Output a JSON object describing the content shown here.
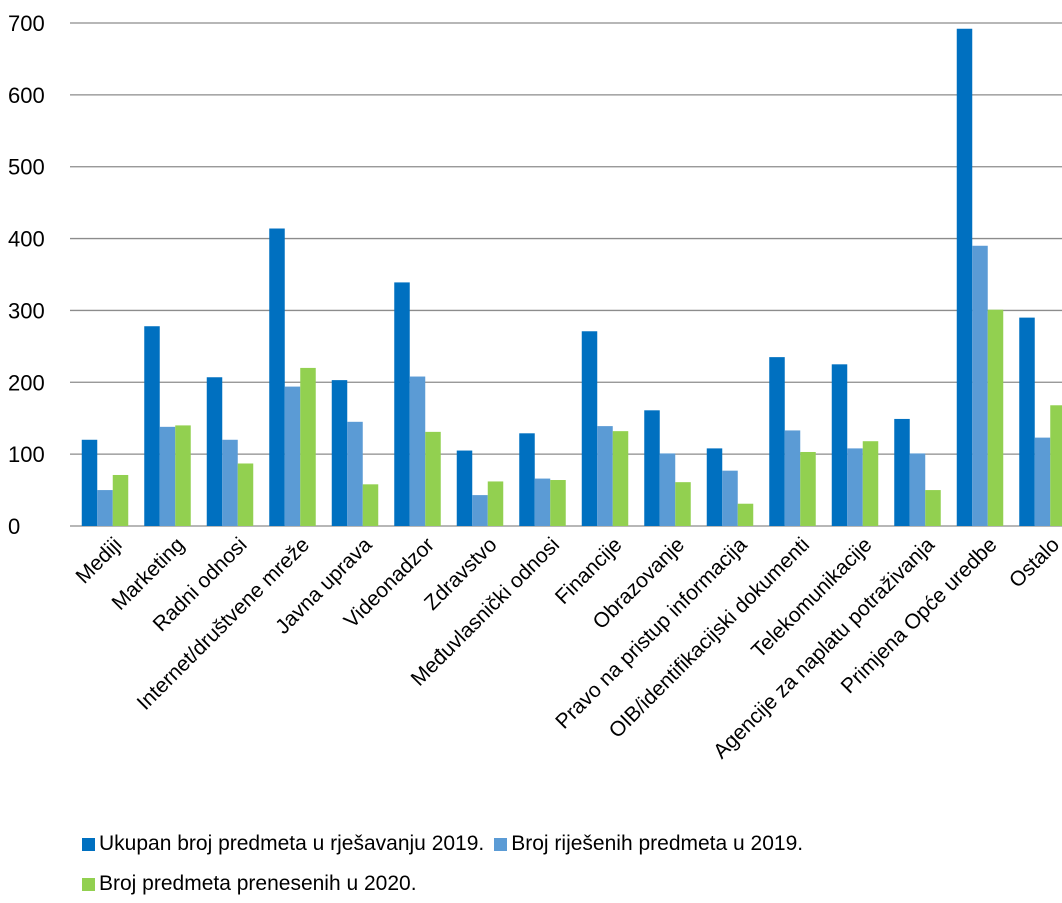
{
  "chart_data": {
    "type": "bar",
    "title": "",
    "xlabel": "",
    "ylabel": "",
    "ylim": [
      0,
      700
    ],
    "yticks": [
      0,
      100,
      200,
      300,
      400,
      500,
      600,
      700
    ],
    "grid": true,
    "legend_position": "bottom",
    "categories": [
      "Mediji",
      "Marketing",
      "Radni odnosi",
      "Internet/društvene mreže",
      "Javna uprava",
      "Videonadzor",
      "Zdravstvo",
      "Međuvlasnički odnosi",
      "Financije",
      "Obrazovanje",
      "Pravo na pristup informacija",
      "OIB/identifikacijski dokumenti",
      "Telekomunikacije",
      "Agencije za naplatu potraživanja",
      "Primjena Opće uredbe",
      "Ostalo"
    ],
    "series": [
      {
        "name": "Ukupan broj predmeta u rješavanju 2019.",
        "color": "#0070C0",
        "values": [
          120,
          278,
          207,
          414,
          203,
          339,
          105,
          129,
          271,
          161,
          108,
          235,
          225,
          149,
          692,
          290
        ]
      },
      {
        "name": "Broj riješenih predmeta u 2019.",
        "color": "#5B9BD5",
        "values": [
          50,
          138,
          120,
          194,
          145,
          208,
          43,
          66,
          139,
          101,
          77,
          133,
          108,
          101,
          390,
          123
        ]
      },
      {
        "name": "Broj predmeta prenesenih u 2020.",
        "color": "#92D050",
        "values": [
          71,
          140,
          87,
          220,
          58,
          131,
          62,
          64,
          132,
          61,
          31,
          103,
          118,
          50,
          301,
          168
        ]
      }
    ]
  }
}
